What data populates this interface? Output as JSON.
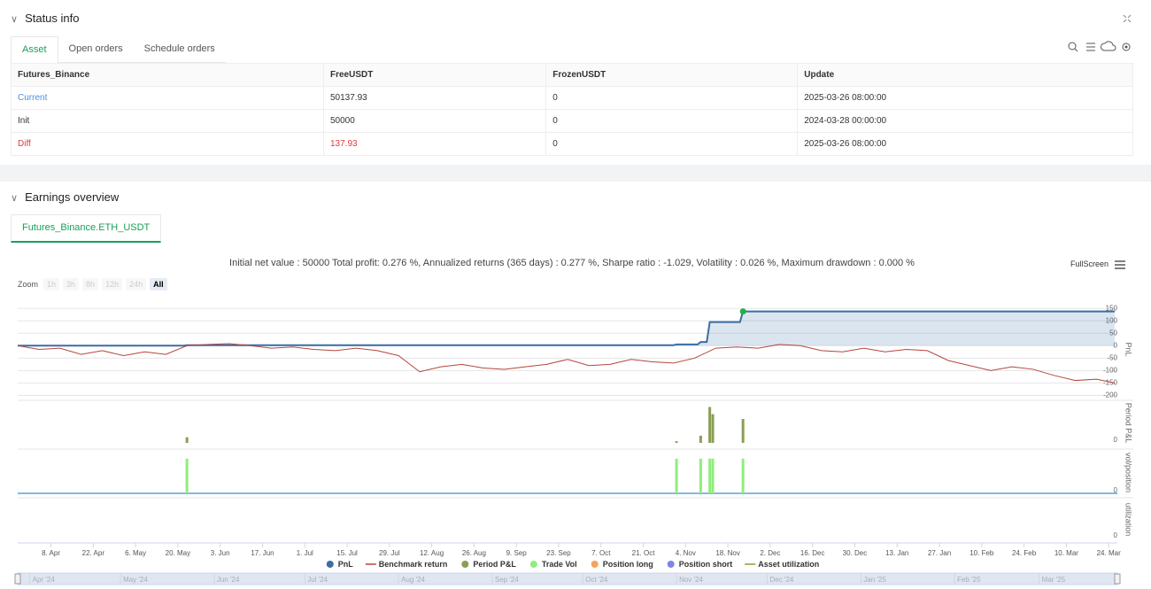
{
  "status": {
    "title": "Status info",
    "tabs": [
      "Asset",
      "Open orders",
      "Schedule orders"
    ],
    "table": {
      "headers": [
        "Futures_Binance",
        "FreeUSDT",
        "FrozenUSDT",
        "Update"
      ],
      "rows": [
        [
          "Current",
          "50137.93",
          "0",
          "2025-03-26 08:00:00"
        ],
        [
          "Init",
          "50000",
          "0",
          "2024-03-28 00:00:00"
        ],
        [
          "Diff",
          "137.93",
          "0",
          "2025-03-26 08:00:00"
        ]
      ]
    }
  },
  "earnings": {
    "title": "Earnings overview",
    "tab": "Futures_Binance.ETH_USDT",
    "summary": "Initial net value : 50000 Total profit: 0.276 %, Annualized returns (365 days) : 0.277 %, Sharpe ratio : -1.029, Volatility : 0.026 %, Maximum drawdown : 0.000 %",
    "fullscreen": "FullScreen",
    "zoom_label": "Zoom",
    "zoom_buttons": [
      "1h",
      "3h",
      "8h",
      "12h",
      "24h",
      "All"
    ]
  },
  "chart_data": {
    "type": "line",
    "xlim": [
      "2024-03-28",
      "2025-03-26"
    ],
    "xticks": [
      {
        "value": "2024-04-08",
        "label": "8. Apr"
      },
      {
        "value": "2024-04-22",
        "label": "22. Apr"
      },
      {
        "value": "2024-05-06",
        "label": "6. May"
      },
      {
        "value": "2024-05-20",
        "label": "20. May"
      },
      {
        "value": "2024-06-03",
        "label": "3. Jun"
      },
      {
        "value": "2024-06-17",
        "label": "17. Jun"
      },
      {
        "value": "2024-07-01",
        "label": "1. Jul"
      },
      {
        "value": "2024-07-15",
        "label": "15. Jul"
      },
      {
        "value": "2024-07-29",
        "label": "29. Jul"
      },
      {
        "value": "2024-08-12",
        "label": "12. Aug"
      },
      {
        "value": "2024-08-26",
        "label": "26. Aug"
      },
      {
        "value": "2024-09-09",
        "label": "9. Sep"
      },
      {
        "value": "2024-09-23",
        "label": "23. Sep"
      },
      {
        "value": "2024-10-07",
        "label": "7. Oct"
      },
      {
        "value": "2024-10-21",
        "label": "21. Oct"
      },
      {
        "value": "2024-11-04",
        "label": "4. Nov"
      },
      {
        "value": "2024-11-18",
        "label": "18. Nov"
      },
      {
        "value": "2024-12-02",
        "label": "2. Dec"
      },
      {
        "value": "2024-12-16",
        "label": "16. Dec"
      },
      {
        "value": "2024-12-30",
        "label": "30. Dec"
      },
      {
        "value": "2025-01-13",
        "label": "13. Jan"
      },
      {
        "value": "2025-01-27",
        "label": "27. Jan"
      },
      {
        "value": "2025-02-10",
        "label": "10. Feb"
      },
      {
        "value": "2025-02-24",
        "label": "24. Feb"
      },
      {
        "value": "2025-03-10",
        "label": "10. Mar"
      },
      {
        "value": "2025-03-24",
        "label": "24. Mar"
      }
    ],
    "navigator_ticks": [
      {
        "value": "2024-04-01",
        "label": "Apr '24"
      },
      {
        "value": "2024-05-01",
        "label": "May '24"
      },
      {
        "value": "2024-06-01",
        "label": "Jun '24"
      },
      {
        "value": "2024-07-01",
        "label": "Jul '24"
      },
      {
        "value": "2024-08-01",
        "label": "Aug '24"
      },
      {
        "value": "2024-09-01",
        "label": "Sep '24"
      },
      {
        "value": "2024-10-01",
        "label": "Oct '24"
      },
      {
        "value": "2024-11-01",
        "label": "Nov '24"
      },
      {
        "value": "2024-12-01",
        "label": "Dec '24"
      },
      {
        "value": "2025-01-01",
        "label": "Jan '25"
      },
      {
        "value": "2025-02-01",
        "label": "Feb '25"
      },
      {
        "value": "2025-03-01",
        "label": "Mar '25"
      }
    ],
    "panels": [
      {
        "label": "PnL",
        "ylim": [
          -220,
          190
        ],
        "yticks": [
          150,
          100,
          50,
          0,
          -50,
          -100,
          -150,
          -200
        ],
        "grid": true
      },
      {
        "label": "Period P&L",
        "ylim": [
          0,
          100
        ],
        "yticks": [
          0
        ]
      },
      {
        "label": "vol/position",
        "ylim": [
          0,
          1.2
        ],
        "yticks": [
          0
        ]
      },
      {
        "label": "utilization",
        "ylim": [
          0,
          1
        ],
        "yticks": [
          0
        ]
      }
    ],
    "series": [
      {
        "name": "PnL",
        "color": "#3a6ea5",
        "type": "area",
        "panel": 0,
        "x": [
          "2024-03-28",
          "2024-05-22",
          "2024-05-23",
          "2024-10-31",
          "2024-11-01",
          "2024-11-08",
          "2024-11-09",
          "2024-11-11",
          "2024-11-12",
          "2024-11-22",
          "2024-11-23",
          "2025-03-26"
        ],
        "values": [
          0,
          0,
          2,
          2,
          5,
          5,
          15,
          15,
          95,
          95,
          137.93,
          137.93
        ]
      },
      {
        "name": "Benchmark return",
        "color": "#b5453c",
        "type": "line",
        "panel": 0,
        "x": [
          "2024-03-28",
          "2024-04-04",
          "2024-04-11",
          "2024-04-18",
          "2024-04-25",
          "2024-05-02",
          "2024-05-09",
          "2024-05-16",
          "2024-05-23",
          "2024-05-30",
          "2024-06-06",
          "2024-06-13",
          "2024-06-20",
          "2024-06-27",
          "2024-07-04",
          "2024-07-11",
          "2024-07-18",
          "2024-07-25",
          "2024-08-01",
          "2024-08-08",
          "2024-08-15",
          "2024-08-22",
          "2024-08-29",
          "2024-09-05",
          "2024-09-12",
          "2024-09-19",
          "2024-09-26",
          "2024-10-03",
          "2024-10-10",
          "2024-10-17",
          "2024-10-24",
          "2024-10-31",
          "2024-11-07",
          "2024-11-14",
          "2024-11-21",
          "2024-11-28",
          "2024-12-05",
          "2024-12-12",
          "2024-12-19",
          "2024-12-26",
          "2025-01-02",
          "2025-01-09",
          "2025-01-16",
          "2025-01-23",
          "2025-01-30",
          "2025-02-06",
          "2025-02-13",
          "2025-02-20",
          "2025-02-27",
          "2025-03-06",
          "2025-03-13",
          "2025-03-20",
          "2025-03-26"
        ],
        "values": [
          0,
          -15,
          -10,
          -35,
          -20,
          -40,
          -25,
          -35,
          0,
          5,
          8,
          0,
          -10,
          -5,
          -15,
          -20,
          -10,
          -20,
          -40,
          -105,
          -85,
          -75,
          -90,
          -95,
          -85,
          -75,
          -55,
          -80,
          -75,
          -55,
          -65,
          -70,
          -50,
          -10,
          -5,
          -10,
          5,
          0,
          -20,
          -25,
          -10,
          -25,
          -15,
          -20,
          -60,
          -80,
          -100,
          -85,
          -95,
          -120,
          -140,
          -135,
          -150
        ]
      },
      {
        "name": "Period P&L",
        "color": "#8a9e55",
        "type": "bar",
        "panel": 1,
        "x": [
          "2024-05-23",
          "2024-11-01",
          "2024-11-09",
          "2024-11-12",
          "2024-11-13",
          "2024-11-23"
        ],
        "values": [
          14,
          4,
          18,
          90,
          72,
          60
        ]
      },
      {
        "name": "Trade Vol",
        "color": "#90ed7d",
        "type": "bar",
        "panel": 2,
        "x": [
          "2024-05-23",
          "2024-11-01",
          "2024-11-09",
          "2024-11-12",
          "2024-11-13",
          "2024-11-23"
        ],
        "values": [
          1,
          1,
          1,
          1,
          1,
          1
        ]
      },
      {
        "name": "Position long",
        "color": "#f7a35c"
      },
      {
        "name": "Position short",
        "color": "#8085e9"
      },
      {
        "name": "Asset utilization",
        "color": "#8d9b3a",
        "type": "line"
      }
    ]
  }
}
